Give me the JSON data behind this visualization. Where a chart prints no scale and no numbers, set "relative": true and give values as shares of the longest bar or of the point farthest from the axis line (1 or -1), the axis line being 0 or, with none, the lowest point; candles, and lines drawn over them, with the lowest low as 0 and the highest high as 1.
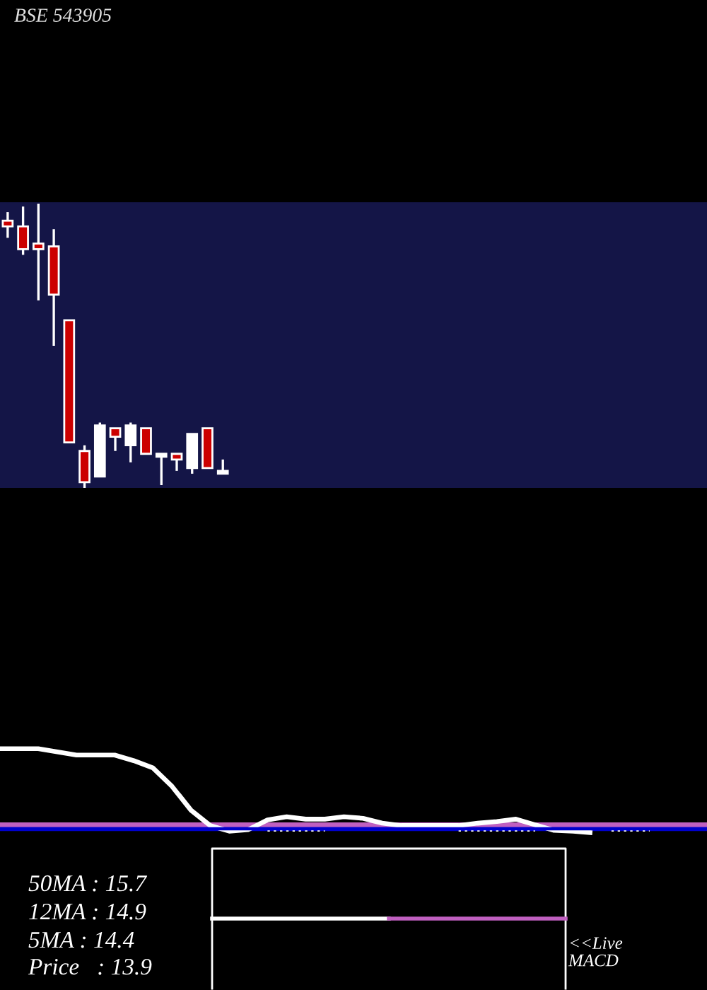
{
  "chart_data": [
    {
      "type": "candlestick",
      "title": "BSE 543905",
      "relative": true,
      "categories": [
        null,
        null,
        null,
        null,
        null,
        null,
        null,
        null,
        null,
        null,
        null,
        null,
        null,
        null,
        null,
        null,
        null,
        null,
        null,
        null,
        null,
        null,
        null,
        null,
        null,
        null,
        null,
        null,
        null,
        null,
        null,
        null,
        null,
        null,
        null,
        null,
        null,
        null,
        null,
        null,
        null,
        null,
        null,
        null,
        null,
        null
      ],
      "ohlc": [
        [
          0.94,
          0.97,
          0.88,
          0.92
        ],
        [
          0.92,
          0.99,
          0.82,
          0.84
        ],
        [
          0.86,
          1.0,
          0.66,
          0.84
        ],
        [
          0.85,
          0.91,
          0.5,
          0.68
        ],
        [
          0.59,
          0.59,
          0.16,
          0.16
        ],
        [
          0.13,
          0.15,
          0.0,
          0.02
        ],
        [
          0.04,
          0.23,
          0.04,
          0.22
        ],
        [
          0.21,
          0.21,
          0.13,
          0.18
        ],
        [
          0.15,
          0.23,
          0.09,
          0.22
        ],
        [
          0.21,
          0.21,
          0.12,
          0.12
        ],
        [
          0.11,
          0.12,
          0.01,
          0.12
        ],
        [
          0.12,
          0.12,
          0.06,
          0.1
        ],
        [
          0.07,
          0.19,
          0.05,
          0.19
        ],
        [
          0.21,
          0.21,
          0.07,
          0.07
        ],
        [
          0.05,
          0.1,
          0.05,
          0.06
        ],
        null,
        null,
        null,
        null,
        null,
        null,
        null,
        null,
        null,
        null,
        null,
        null,
        null,
        null,
        null,
        null,
        null,
        null,
        null,
        null,
        null,
        null,
        null,
        null,
        null,
        null,
        null,
        null,
        null,
        null,
        null
      ],
      "colors": [
        "#cc0000",
        "#cc0000",
        "#cc0000",
        "#cc0000",
        "#cc0000",
        "#cc0000",
        "#ffffff",
        "#cc0000",
        "#ffffff",
        "#cc0000",
        "#ffffff",
        "#cc0000",
        "#ffffff",
        "#cc0000",
        "#ffffff",
        null,
        null,
        null,
        null,
        null,
        null,
        null,
        null,
        null,
        null,
        null,
        null,
        null,
        null,
        null,
        null,
        null,
        null,
        null,
        null,
        null,
        null,
        null,
        null,
        null,
        null,
        null,
        null,
        null,
        null,
        null
      ]
    },
    {
      "type": "line",
      "relative": true,
      "categories": [
        null,
        null,
        null,
        null,
        null,
        null,
        null,
        null,
        null,
        null,
        null,
        null,
        null,
        null,
        null,
        null,
        null,
        null,
        null,
        null,
        null,
        null,
        null,
        null,
        null,
        null,
        null,
        null,
        null,
        null,
        null,
        null,
        null,
        null,
        null,
        null,
        null,
        null
      ],
      "series": [
        {
          "color": "#0000cc",
          "values": [
            0,
            0,
            0,
            0,
            0,
            0,
            0,
            0,
            0,
            0,
            0,
            0,
            0,
            0,
            0,
            0,
            0,
            0,
            0,
            0,
            0,
            0,
            0,
            0,
            0,
            0,
            0,
            0,
            0,
            0,
            0,
            0,
            0,
            0,
            0,
            0,
            0,
            0
          ]
        },
        {
          "color": "#c060c0",
          "values": [
            0.05,
            0.05,
            0.05,
            0.05,
            0.05,
            0.05,
            0.05,
            0.05,
            0.05,
            0.05,
            0.05,
            0.05,
            0.05,
            0.05,
            0.05,
            0.05,
            0.05,
            0.05,
            0.05,
            0.05,
            0.05,
            0.05,
            0.05,
            0.05,
            0.05,
            0.05,
            0.05,
            0.05,
            0.05,
            0.05,
            0.05,
            0.05,
            0.05,
            0.05,
            0.05,
            0.05,
            0.05,
            0.05
          ]
        },
        {
          "color": "#ffffff",
          "values": [
            1.0,
            1.0,
            1.0,
            0.96,
            0.92,
            0.92,
            0.92,
            0.85,
            0.76,
            0.53,
            0.23,
            0.04,
            -0.03,
            -0.01,
            0.11,
            0.15,
            0.12,
            0.12,
            0.15,
            0.13,
            0.07,
            0.04,
            0.04,
            0.04,
            0.04,
            0.07,
            0.09,
            0.12,
            0.05,
            -0.02,
            -0.03,
            -0.05,
            null,
            null,
            null,
            null,
            null,
            null
          ]
        },
        {
          "color": "#ffffff",
          "line_style": "dotted",
          "values": [
            null,
            null,
            null,
            null,
            null,
            null,
            null,
            null,
            null,
            null,
            null,
            null,
            null,
            null,
            -0.02,
            -0.02,
            -0.02,
            -0.02,
            null,
            null,
            null,
            null,
            null,
            null,
            -0.02,
            -0.02,
            -0.02,
            -0.02,
            -0.02,
            null,
            null,
            null,
            -0.02,
            -0.02,
            -0.02,
            null,
            null,
            null
          ]
        }
      ]
    },
    {
      "type": "other",
      "annotations": [
        "50MA : 15.7",
        "12MA : 14.9",
        "5MA : 14.4",
        "Price   : 13.9",
        "<<Live\nMACD"
      ]
    }
  ]
}
